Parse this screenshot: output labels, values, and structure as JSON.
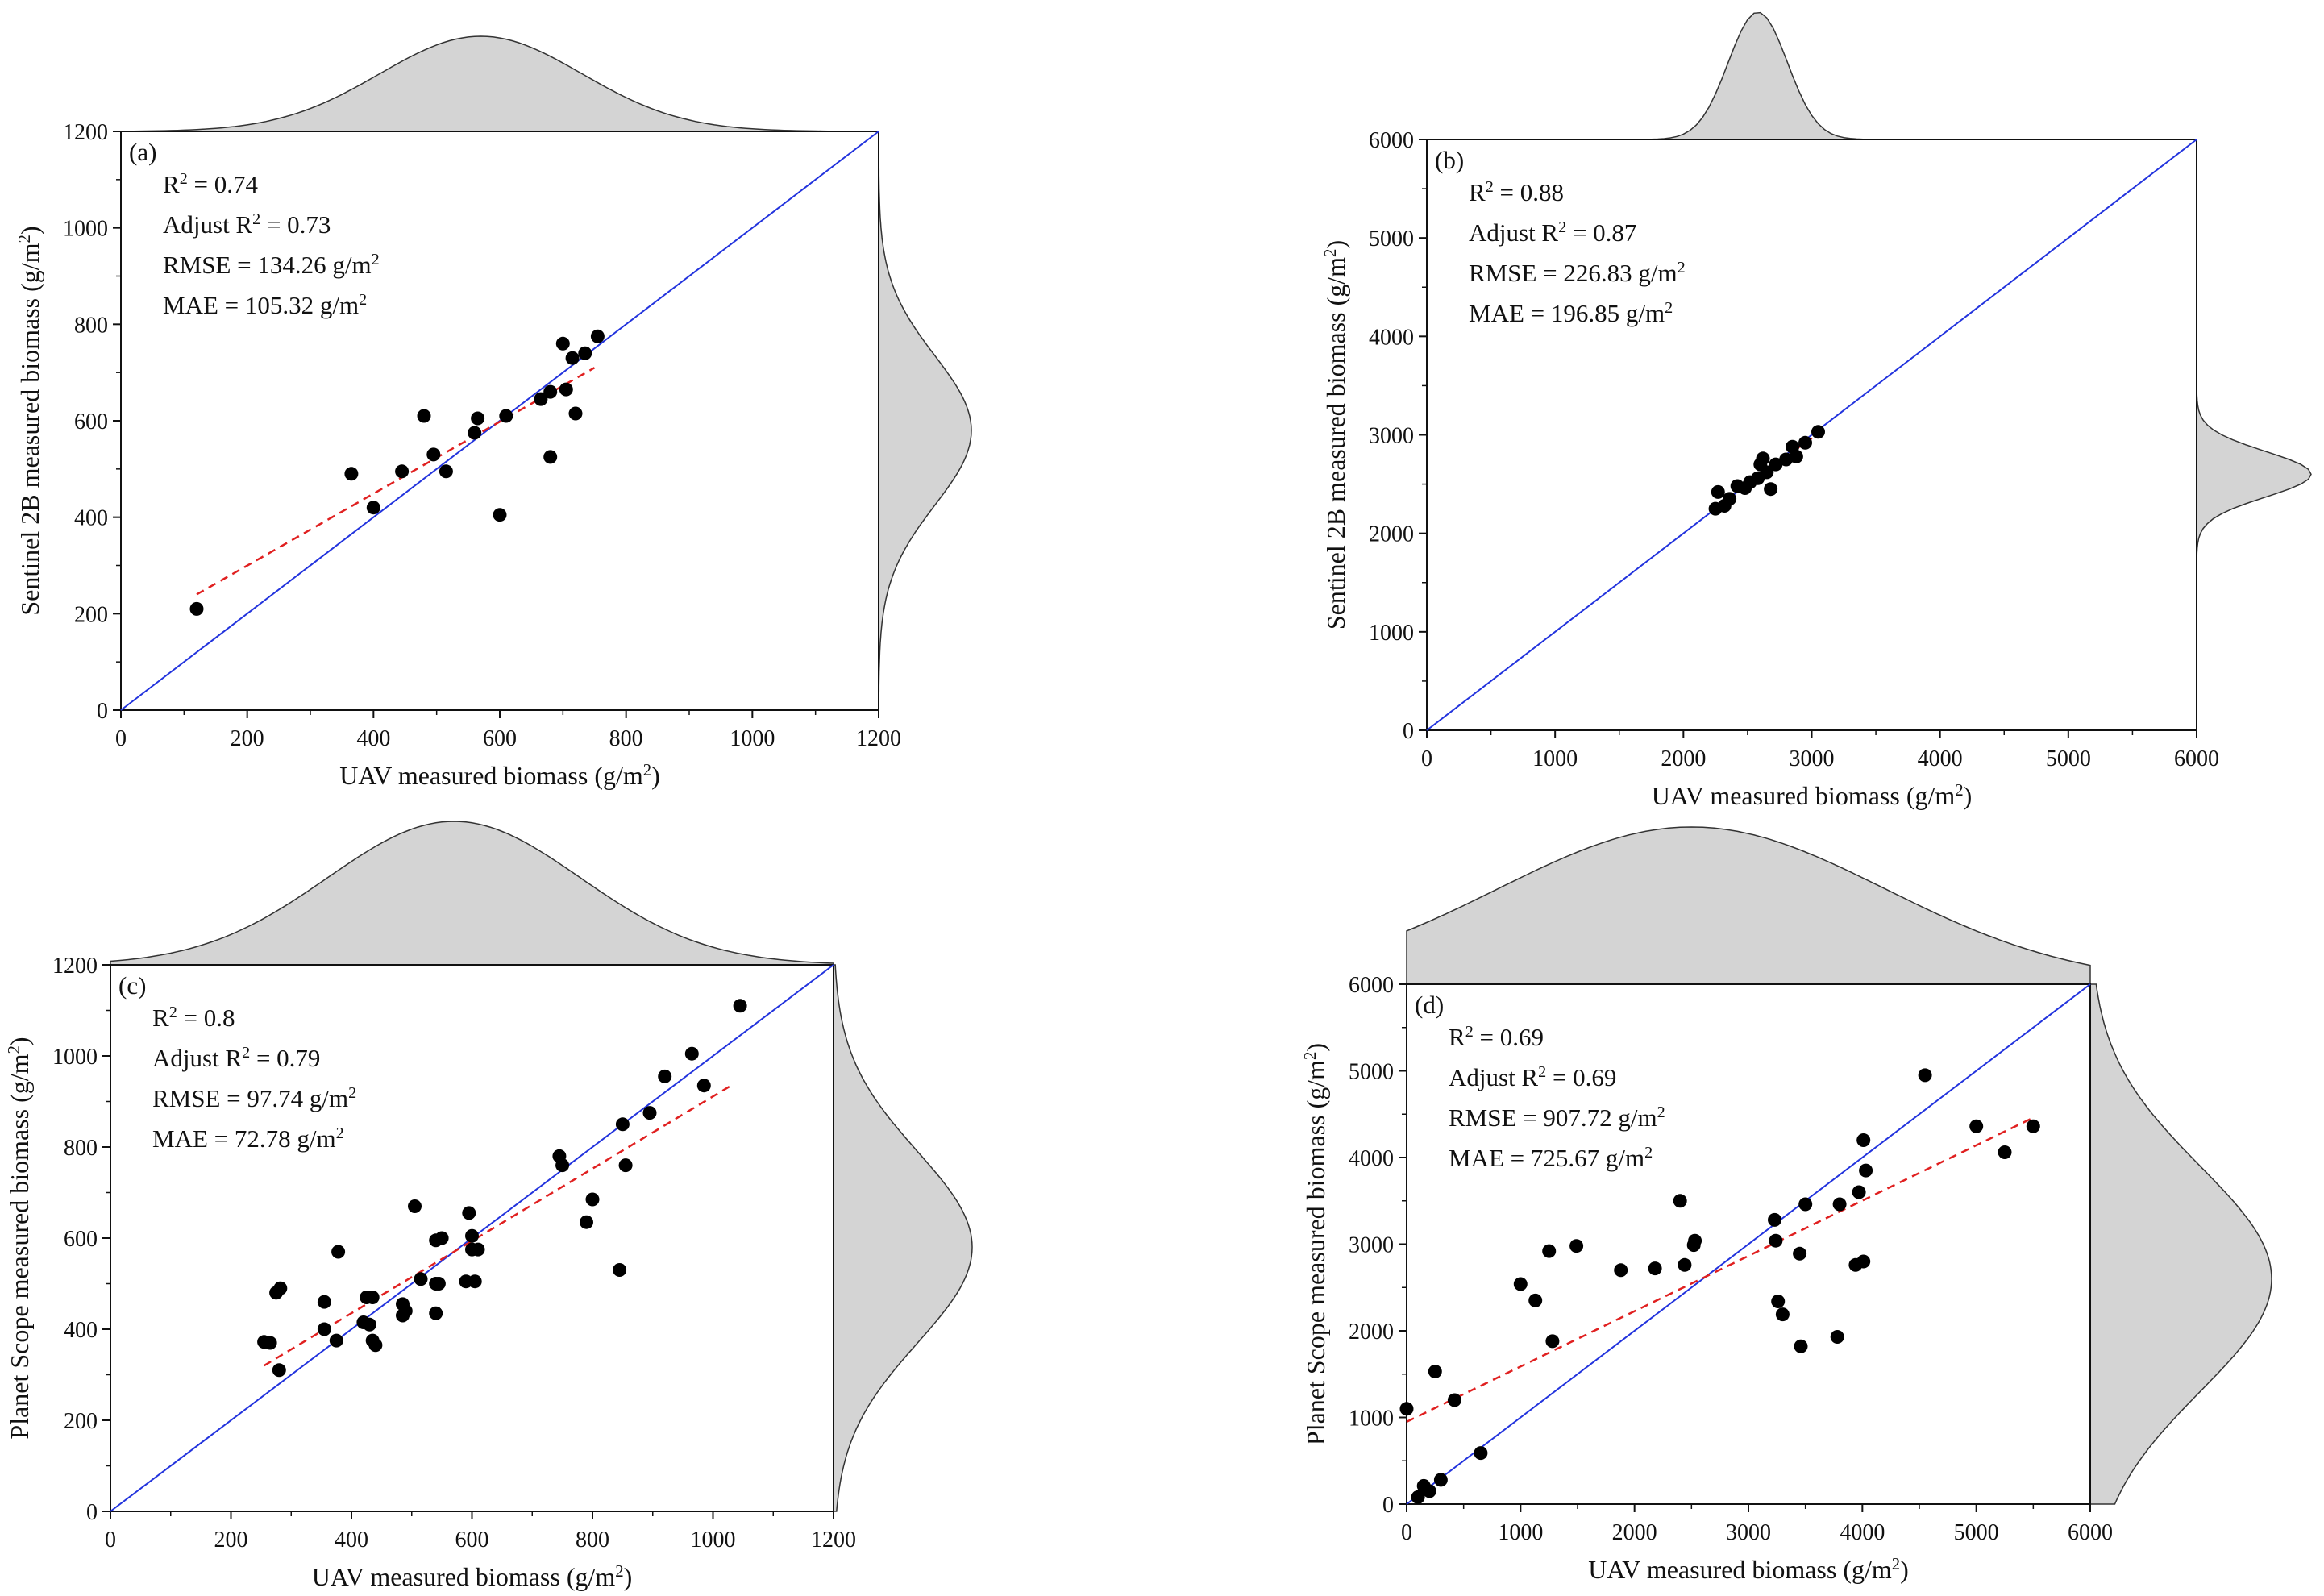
{
  "colors": {
    "points": "#000000",
    "identity_line": "#2233dd",
    "fit_line": "#e02020",
    "density_fill": "#d4d4d4",
    "density_stroke": "#333333",
    "frame": "#111111"
  },
  "chart_data": [
    {
      "type": "scatter",
      "panel": "(a)",
      "xlabel": "UAV measured biomass (g/m",
      "ylabel": "Sentinel 2B measured biomass (g/m",
      "unit_sup": "2",
      "unit_close": ")",
      "xlim": [
        0,
        1200
      ],
      "ylim": [
        0,
        1200
      ],
      "xticks": [
        "0",
        "200",
        "400",
        "600",
        "800",
        "1000",
        "1200"
      ],
      "yticks": [
        "0",
        "200",
        "400",
        "600",
        "800",
        "1000",
        "1200"
      ],
      "tick_values": [
        0,
        200,
        400,
        600,
        800,
        1000,
        1200
      ],
      "stats": [
        {
          "pre": "R",
          "sup": "2",
          "post": " = 0.74"
        },
        {
          "pre": "Adjust R",
          "sup": "2",
          "post": " = 0.73"
        },
        {
          "pre": "RMSE = 134.26 g/m",
          "sup": "2",
          "post": ""
        },
        {
          "pre": "MAE = 105.32 g/m",
          "sup": "2",
          "post": ""
        }
      ],
      "fit_line": [
        [
          120,
          240
        ],
        [
          750,
          710
        ]
      ],
      "x_density": {
        "mean": 570,
        "sd": 160
      },
      "y_density": {
        "mean": 580,
        "sd": 155
      },
      "points": [
        [
          120,
          210
        ],
        [
          365,
          490
        ],
        [
          400,
          420
        ],
        [
          445,
          495
        ],
        [
          480,
          610
        ],
        [
          495,
          530
        ],
        [
          515,
          495
        ],
        [
          560,
          575
        ],
        [
          565,
          605
        ],
        [
          600,
          405
        ],
        [
          610,
          610
        ],
        [
          665,
          645
        ],
        [
          680,
          660
        ],
        [
          680,
          525
        ],
        [
          700,
          760
        ],
        [
          705,
          665
        ],
        [
          715,
          730
        ],
        [
          720,
          615
        ],
        [
          735,
          740
        ],
        [
          755,
          775
        ]
      ]
    },
    {
      "type": "scatter",
      "panel": "(b)",
      "xlabel": "UAV measured biomass (g/m",
      "ylabel": "Sentinel 2B measured biomass (g/m",
      "unit_sup": "2",
      "unit_close": ")",
      "xlim": [
        0,
        6000
      ],
      "ylim": [
        0,
        6000
      ],
      "xticks": [
        "0",
        "1000",
        "2000",
        "3000",
        "4000",
        "5000",
        "6000"
      ],
      "yticks": [
        "0",
        "1000",
        "2000",
        "3000",
        "4000",
        "5000",
        "6000"
      ],
      "tick_values": [
        0,
        1000,
        2000,
        3000,
        4000,
        5000,
        6000
      ],
      "stats": [
        {
          "pre": "R",
          "sup": "2",
          "post": " = 0.88"
        },
        {
          "pre": "Adjust R",
          "sup": "2",
          "post": " = 0.87"
        },
        {
          "pre": "RMSE = 226.83 g/m",
          "sup": "2",
          "post": ""
        },
        {
          "pre": "MAE = 196.85 g/m",
          "sup": "2",
          "post": ""
        }
      ],
      "fit_line": [
        [
          2250,
          2280
        ],
        [
          3060,
          3020
        ]
      ],
      "x_density": {
        "mean": 2580,
        "sd": 230
      },
      "y_density": {
        "mean": 2600,
        "sd": 230
      },
      "points": [
        [
          2250,
          2250
        ],
        [
          2270,
          2420
        ],
        [
          2320,
          2280
        ],
        [
          2360,
          2350
        ],
        [
          2420,
          2480
        ],
        [
          2480,
          2460
        ],
        [
          2520,
          2520
        ],
        [
          2580,
          2560
        ],
        [
          2600,
          2700
        ],
        [
          2620,
          2760
        ],
        [
          2650,
          2620
        ],
        [
          2680,
          2450
        ],
        [
          2720,
          2700
        ],
        [
          2800,
          2750
        ],
        [
          2850,
          2880
        ],
        [
          2880,
          2780
        ],
        [
          2950,
          2920
        ],
        [
          3050,
          3030
        ]
      ]
    },
    {
      "type": "scatter",
      "panel": "(c)",
      "xlabel": "UAV measured biomass (g/m",
      "ylabel": "Planet Scope measured biomass (g/m",
      "unit_sup": "2",
      "unit_close": ")",
      "xlim": [
        0,
        1200
      ],
      "ylim": [
        0,
        1200
      ],
      "xticks": [
        "0",
        "200",
        "400",
        "600",
        "800",
        "1000",
        "1200"
      ],
      "yticks": [
        "0",
        "200",
        "400",
        "600",
        "800",
        "1000",
        "1200"
      ],
      "tick_values": [
        0,
        200,
        400,
        600,
        800,
        1000,
        1200
      ],
      "stats": [
        {
          "pre": "R",
          "sup": "2",
          "post": " = 0.8"
        },
        {
          "pre": "Adjust R",
          "sup": "2",
          "post": " = 0.79"
        },
        {
          "pre": "RMSE = 97.74 g/m",
          "sup": "2",
          "post": ""
        },
        {
          "pre": "MAE = 72.78 g/m",
          "sup": "2",
          "post": ""
        }
      ],
      "fit_line": [
        [
          255,
          320
        ],
        [
          1030,
          935
        ]
      ],
      "x_density": {
        "mean": 570,
        "sd": 210
      },
      "y_density": {
        "mean": 580,
        "sd": 210
      },
      "points": [
        [
          255,
          372
        ],
        [
          265,
          370
        ],
        [
          275,
          480
        ],
        [
          280,
          310
        ],
        [
          282,
          490
        ],
        [
          355,
          400
        ],
        [
          355,
          460
        ],
        [
          375,
          375
        ],
        [
          378,
          570
        ],
        [
          420,
          415
        ],
        [
          425,
          470
        ],
        [
          430,
          410
        ],
        [
          435,
          470
        ],
        [
          435,
          375
        ],
        [
          440,
          365
        ],
        [
          485,
          455
        ],
        [
          485,
          430
        ],
        [
          490,
          440
        ],
        [
          505,
          670
        ],
        [
          515,
          510
        ],
        [
          540,
          595
        ],
        [
          540,
          500
        ],
        [
          540,
          435
        ],
        [
          545,
          500
        ],
        [
          550,
          600
        ],
        [
          590,
          505
        ],
        [
          595,
          655
        ],
        [
          600,
          575
        ],
        [
          600,
          605
        ],
        [
          605,
          505
        ],
        [
          610,
          575
        ],
        [
          745,
          780
        ],
        [
          750,
          760
        ],
        [
          790,
          635
        ],
        [
          800,
          685
        ],
        [
          845,
          530
        ],
        [
          850,
          850
        ],
        [
          855,
          760
        ],
        [
          895,
          875
        ],
        [
          920,
          955
        ],
        [
          965,
          1005
        ],
        [
          985,
          935
        ],
        [
          1045,
          1110
        ]
      ]
    },
    {
      "type": "scatter",
      "panel": "(d)",
      "xlabel": "UAV measured biomass (g/m",
      "ylabel": "Planet Scope measured biomass (g/m",
      "unit_sup": "2",
      "unit_close": ")",
      "xlim": [
        0,
        6000
      ],
      "ylim": [
        0,
        6000
      ],
      "xticks": [
        "0",
        "1000",
        "2000",
        "3000",
        "4000",
        "5000",
        "6000"
      ],
      "yticks": [
        "0",
        "1000",
        "2000",
        "3000",
        "4000",
        "5000",
        "6000"
      ],
      "tick_values": [
        0,
        1000,
        2000,
        3000,
        4000,
        5000,
        6000
      ],
      "stats": [
        {
          "pre": "R",
          "sup": "2",
          "post": " = 0.69"
        },
        {
          "pre": "Adjust R",
          "sup": "2",
          "post": " = 0.69"
        },
        {
          "pre": "RMSE = 907.72 g/m",
          "sup": "2",
          "post": ""
        },
        {
          "pre": "MAE = 725.67 g/m",
          "sup": "2",
          "post": ""
        }
      ],
      "fit_line": [
        [
          0,
          950
        ],
        [
          5500,
          4460
        ]
      ],
      "x_density": {
        "mean": 2500,
        "sd": 1700
      },
      "y_density": {
        "mean": 2600,
        "sd": 1300
      },
      "points": [
        [
          0,
          1100
        ],
        [
          100,
          80
        ],
        [
          150,
          210
        ],
        [
          200,
          150
        ],
        [
          250,
          1530
        ],
        [
          300,
          280
        ],
        [
          420,
          1200
        ],
        [
          650,
          590
        ],
        [
          1000,
          2540
        ],
        [
          1130,
          2350
        ],
        [
          1250,
          2920
        ],
        [
          1280,
          1880
        ],
        [
          1490,
          2980
        ],
        [
          1880,
          2700
        ],
        [
          2180,
          2720
        ],
        [
          2400,
          3500
        ],
        [
          2440,
          2760
        ],
        [
          2520,
          2990
        ],
        [
          2530,
          3040
        ],
        [
          3230,
          3280
        ],
        [
          3240,
          3040
        ],
        [
          3260,
          2340
        ],
        [
          3300,
          2190
        ],
        [
          3450,
          2890
        ],
        [
          3460,
          1820
        ],
        [
          3500,
          3460
        ],
        [
          3780,
          1930
        ],
        [
          3800,
          3460
        ],
        [
          3940,
          2760
        ],
        [
          3970,
          3600
        ],
        [
          4010,
          4200
        ],
        [
          4010,
          2800
        ],
        [
          4030,
          3850
        ],
        [
          4550,
          4950
        ],
        [
          5000,
          4360
        ],
        [
          5250,
          4060
        ],
        [
          5500,
          4360
        ]
      ]
    }
  ]
}
